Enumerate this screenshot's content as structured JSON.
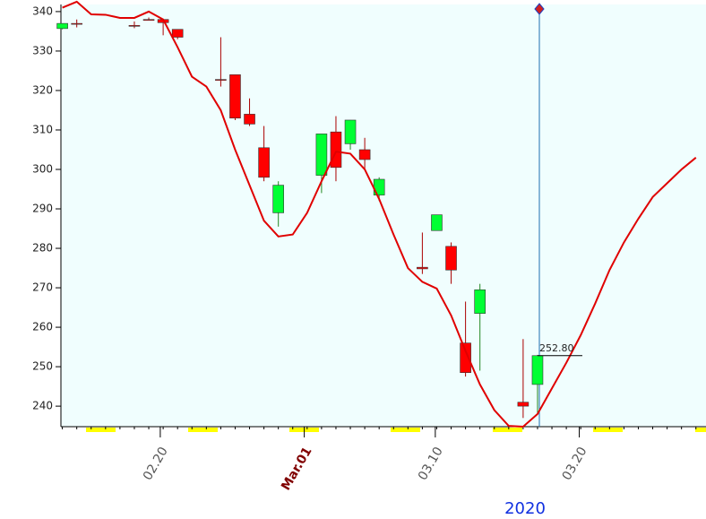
{
  "chart_data": {
    "type": "candlestick",
    "up_color": "#00ff33",
    "down_color": "#ff0000",
    "x": [
      0,
      1,
      5,
      6,
      7,
      8,
      11,
      12,
      13,
      14,
      15,
      18,
      19,
      20,
      21,
      22,
      25,
      26,
      27,
      28,
      29,
      32,
      33
    ],
    "open": [
      335.7,
      337,
      336.5,
      338,
      338,
      335.5,
      322.8,
      324,
      314,
      305.5,
      289,
      298.5,
      309.5,
      306.5,
      305,
      293.5,
      275.2,
      284.5,
      280.5,
      256,
      263.5,
      241,
      245.5
    ],
    "high": [
      337,
      338,
      337.5,
      338.5,
      338.2,
      335.5,
      333.5,
      324,
      318,
      311,
      297,
      309,
      313.5,
      312.5,
      308,
      298,
      284,
      288.5,
      281.5,
      266.5,
      271,
      257,
      253
    ],
    "low": [
      335.5,
      336,
      335.8,
      337.8,
      334,
      333,
      321,
      312.5,
      311,
      297,
      285.5,
      294,
      297,
      305,
      300,
      292,
      273.5,
      284.5,
      271,
      247.5,
      249,
      237,
      238
    ],
    "close": [
      337,
      336.8,
      336.5,
      338,
      337.2,
      333.5,
      322.6,
      313,
      311.5,
      298,
      296,
      309,
      300.5,
      312.5,
      302.5,
      297.5,
      274.8,
      288.5,
      274.5,
      248.5,
      269.5,
      240,
      252.8
    ],
    "last_close_label": "252.80",
    "line": {
      "color": "#e00000",
      "x": [
        0,
        1,
        2,
        3,
        4,
        5,
        6,
        7,
        8,
        9,
        10,
        11,
        12,
        13,
        14,
        15,
        16,
        17,
        18,
        19,
        20,
        21,
        22,
        23,
        24,
        25,
        26,
        27,
        28,
        29,
        30,
        31,
        32,
        33,
        34,
        35,
        36,
        37,
        38,
        39,
        40,
        41,
        42,
        43,
        44
      ],
      "values": [
        341,
        342.5,
        339.3,
        339.2,
        338.4,
        338.4,
        340,
        338,
        331,
        323.5,
        321,
        315,
        305,
        296,
        287,
        283,
        283.5,
        289,
        297,
        304.5,
        304,
        300,
        292.5,
        283.5,
        275,
        271.5,
        269.8,
        263,
        254,
        245.5,
        239,
        235,
        234.8,
        238,
        244.5,
        251,
        258,
        266,
        274.5,
        281.5,
        287.5,
        293,
        296.5,
        300,
        303
      ]
    },
    "xlim": [
      -0.1,
      44.7
    ],
    "xticks": [
      {
        "value": 6.8,
        "label": "02.20"
      },
      {
        "value": 16.8,
        "label": "Mar.01",
        "color": "#800000"
      },
      {
        "value": 25.9,
        "label": "03.10"
      },
      {
        "value": 35.9,
        "label": "03.20"
      }
    ],
    "ylim": [
      234.8,
      341.8
    ],
    "yticks": [
      240,
      250,
      260,
      270,
      280,
      290,
      300,
      310,
      320,
      330,
      340
    ],
    "year_label": "2020"
  }
}
